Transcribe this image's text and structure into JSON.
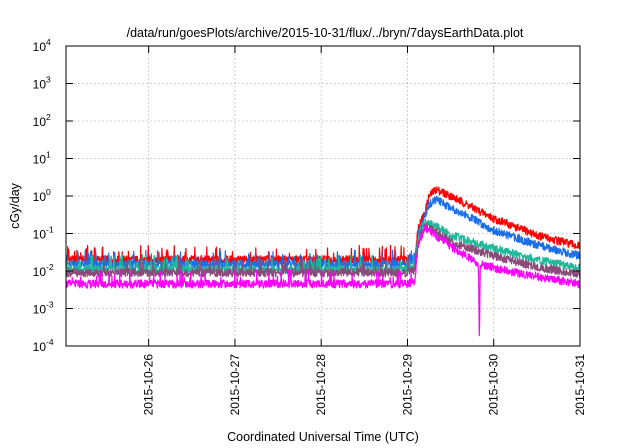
{
  "chart_data": {
    "type": "line",
    "title": "/data/run/goesPlots/archive/2015-10-31/flux/../bryn/7daysEarthData.plot",
    "xlabel": "Coordinated Universal Time (UTC)",
    "ylabel": "cGy/day",
    "y_scale": "log",
    "ylim_exp": [
      -4,
      4
    ],
    "y_ticks": [
      {
        "base": "10",
        "exp": "-4"
      },
      {
        "base": "10",
        "exp": "-3"
      },
      {
        "base": "10",
        "exp": "-2"
      },
      {
        "base": "10",
        "exp": "-1"
      },
      {
        "base": "10",
        "exp": "0"
      },
      {
        "base": "10",
        "exp": "1"
      },
      {
        "base": "10",
        "exp": "2"
      },
      {
        "base": "10",
        "exp": "3"
      },
      {
        "base": "10",
        "exp": "4"
      }
    ],
    "x_ticks": [
      "2015-10-26",
      "2015-10-27",
      "2015-10-28",
      "2015-10-29",
      "2015-10-30",
      "2015-10-31"
    ],
    "xlim": [
      "2015-10-25 01:00",
      "2015-10-31 00:00"
    ],
    "grid": true,
    "series": [
      {
        "color": "#ff0000",
        "points": [
          [
            "2015-10-25 01:00",
            0.02
          ],
          [
            "2015-10-26 00:00",
            0.02
          ],
          [
            "2015-10-27 00:00",
            0.02
          ],
          [
            "2015-10-28 00:00",
            0.02
          ],
          [
            "2015-10-29 00:00",
            0.02
          ],
          [
            "2015-10-29 02:00",
            0.022
          ],
          [
            "2015-10-29 03:00",
            0.15
          ],
          [
            "2015-10-29 04:30",
            0.3
          ],
          [
            "2015-10-29 05:00",
            0.4
          ],
          [
            "2015-10-29 06:00",
            1.0
          ],
          [
            "2015-10-29 08:00",
            1.5
          ],
          [
            "2015-10-29 12:00",
            1.0
          ],
          [
            "2015-10-29 18:00",
            0.5
          ],
          [
            "2015-10-30 00:00",
            0.25
          ],
          [
            "2015-10-30 12:00",
            0.09
          ],
          [
            "2015-10-31 00:00",
            0.045
          ]
        ]
      },
      {
        "color": "#1a6fe8",
        "points": [
          [
            "2015-10-25 01:00",
            0.015
          ],
          [
            "2015-10-26 00:00",
            0.015
          ],
          [
            "2015-10-27 00:00",
            0.015
          ],
          [
            "2015-10-28 00:00",
            0.015
          ],
          [
            "2015-10-29 00:00",
            0.015
          ],
          [
            "2015-10-29 02:00",
            0.017
          ],
          [
            "2015-10-29 03:00",
            0.1
          ],
          [
            "2015-10-29 04:30",
            0.22
          ],
          [
            "2015-10-29 05:00",
            0.3
          ],
          [
            "2015-10-29 06:00",
            0.6
          ],
          [
            "2015-10-29 08:00",
            0.8
          ],
          [
            "2015-10-29 12:00",
            0.5
          ],
          [
            "2015-10-29 18:00",
            0.25
          ],
          [
            "2015-10-30 00:00",
            0.12
          ],
          [
            "2015-10-30 12:00",
            0.05
          ],
          [
            "2015-10-31 00:00",
            0.025
          ]
        ]
      },
      {
        "color": "#1fb89a",
        "points": [
          [
            "2015-10-25 01:00",
            0.011
          ],
          [
            "2015-10-26 00:00",
            0.011
          ],
          [
            "2015-10-27 00:00",
            0.011
          ],
          [
            "2015-10-28 00:00",
            0.011
          ],
          [
            "2015-10-29 00:00",
            0.011
          ],
          [
            "2015-10-29 02:00",
            0.012
          ],
          [
            "2015-10-29 03:00",
            0.08
          ],
          [
            "2015-10-29 04:30",
            0.18
          ],
          [
            "2015-10-29 06:00",
            0.2
          ],
          [
            "2015-10-29 12:00",
            0.09
          ],
          [
            "2015-10-30 00:00",
            0.04
          ],
          [
            "2015-10-30 12:00",
            0.02
          ],
          [
            "2015-10-31 00:00",
            0.012
          ]
        ]
      },
      {
        "color": "#8a4a7a",
        "points": [
          [
            "2015-10-25 01:00",
            0.009
          ],
          [
            "2015-10-26 00:00",
            0.009
          ],
          [
            "2015-10-27 00:00",
            0.009
          ],
          [
            "2015-10-28 00:00",
            0.009
          ],
          [
            "2015-10-29 00:00",
            0.009
          ],
          [
            "2015-10-29 02:00",
            0.01
          ],
          [
            "2015-10-29 03:00",
            0.06
          ],
          [
            "2015-10-29 04:30",
            0.15
          ],
          [
            "2015-10-29 06:00",
            0.15
          ],
          [
            "2015-10-29 12:00",
            0.06
          ],
          [
            "2015-10-30 00:00",
            0.025
          ],
          [
            "2015-10-30 12:00",
            0.013
          ],
          [
            "2015-10-31 00:00",
            0.008
          ]
        ]
      },
      {
        "color": "#ff00ff",
        "points": [
          [
            "2015-10-25 01:00",
            0.0045
          ],
          [
            "2015-10-26 00:00",
            0.0045
          ],
          [
            "2015-10-27 00:00",
            0.0045
          ],
          [
            "2015-10-28 00:00",
            0.0045
          ],
          [
            "2015-10-29 00:00",
            0.0045
          ],
          [
            "2015-10-29 02:00",
            0.005
          ],
          [
            "2015-10-29 03:00",
            0.05
          ],
          [
            "2015-10-29 04:30",
            0.12
          ],
          [
            "2015-10-29 05:00",
            0.15
          ],
          [
            "2015-10-29 06:00",
            0.12
          ],
          [
            "2015-10-29 12:00",
            0.045
          ],
          [
            "2015-10-29 18:00",
            0.02
          ],
          [
            "2015-10-29 19:45",
            0.015
          ],
          [
            "2015-10-29 20:00",
            0.0001
          ],
          [
            "2015-10-29 20:15",
            0.015
          ],
          [
            "2015-10-30 00:00",
            0.012
          ],
          [
            "2015-10-30 12:00",
            0.007
          ],
          [
            "2015-10-31 00:00",
            0.0045
          ]
        ]
      }
    ]
  }
}
